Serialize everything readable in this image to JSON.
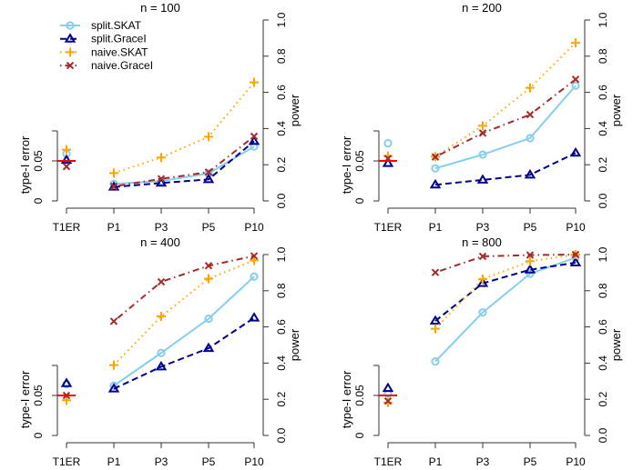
{
  "chart_data": {
    "type": "line",
    "legend": {
      "placement": "top-left of first panel",
      "entries": [
        "split.SKAT",
        "split.GraceI",
        "naive.SKAT",
        "naive.GraceI"
      ]
    },
    "styles": [
      {
        "name": "split.SKAT",
        "color": "#87CEEB",
        "line": "solid",
        "marker": "circle"
      },
      {
        "name": "split.GraceI",
        "color": "#00008B",
        "line": "dashed",
        "marker": "triangle"
      },
      {
        "name": "naive.SKAT",
        "color": "#FFA500",
        "line": "dotted",
        "marker": "plus"
      },
      {
        "name": "naive.GraceI",
        "color": "#A52A2A",
        "line": "dotdash",
        "marker": "x"
      }
    ],
    "reference_line": {
      "value": 0.05,
      "color": "#FF0000",
      "at": "T1ER"
    },
    "categories": [
      "T1ER",
      "P1",
      "P3",
      "P5",
      "P10"
    ],
    "left_axis": {
      "label": "type-I error",
      "ticks": [
        "0",
        "0.05"
      ],
      "range": [
        0,
        0.0875
      ]
    },
    "right_axis": {
      "label": "power",
      "ticks": [
        "0.0",
        "0.2",
        "0.4",
        "0.6",
        "0.8",
        "1.0"
      ],
      "range": [
        0,
        1
      ]
    },
    "grid": false,
    "panels": [
      {
        "title": "n = 100",
        "type1_error": {
          "split.SKAT": 0.059,
          "split.GraceI": 0.051,
          "naive.SKAT": 0.064,
          "naive.GraceI": 0.043
        },
        "power": {
          "split.SKAT": [
            0.094,
            0.11,
            0.152,
            0.3
          ],
          "split.GraceI": [
            0.077,
            0.099,
            0.119,
            0.33
          ],
          "naive.SKAT": [
            0.154,
            0.24,
            0.355,
            0.655
          ],
          "naive.GraceI": [
            0.08,
            0.122,
            0.159,
            0.357
          ]
        }
      },
      {
        "title": "n = 200",
        "type1_error": {
          "split.SKAT": 0.072,
          "split.GraceI": 0.047,
          "naive.SKAT": 0.056,
          "naive.GraceI": 0.053
        },
        "power": {
          "split.SKAT": [
            0.18,
            0.256,
            0.347,
            0.637
          ],
          "split.GraceI": [
            0.089,
            0.116,
            0.144,
            0.265
          ],
          "naive.SKAT": [
            0.245,
            0.415,
            0.625,
            0.874
          ],
          "naive.GraceI": [
            0.243,
            0.375,
            0.477,
            0.672
          ]
        }
      },
      {
        "title": "n = 400",
        "type1_error": {
          "split.SKAT": 0.064,
          "split.GraceI": 0.065,
          "naive.SKAT": 0.044,
          "naive.GraceI": 0.05
        },
        "power": {
          "split.SKAT": [
            0.275,
            0.456,
            0.645,
            0.878
          ],
          "split.GraceI": [
            0.258,
            0.38,
            0.482,
            0.65
          ],
          "naive.SKAT": [
            0.389,
            0.658,
            0.866,
            0.968
          ],
          "naive.GraceI": [
            0.631,
            0.849,
            0.938,
            0.992
          ]
        }
      },
      {
        "title": "n = 800",
        "type1_error": {
          "split.SKAT": 0.052,
          "split.GraceI": 0.059,
          "naive.SKAT": 0.041,
          "naive.GraceI": 0.043
        },
        "power": {
          "split.SKAT": [
            0.409,
            0.68,
            0.894,
            0.983
          ],
          "split.GraceI": [
            0.633,
            0.841,
            0.916,
            0.955
          ],
          "naive.SKAT": [
            0.59,
            0.864,
            0.963,
            1.0
          ],
          "naive.GraceI": [
            0.901,
            0.99,
            0.997,
            1.0
          ]
        }
      }
    ]
  }
}
